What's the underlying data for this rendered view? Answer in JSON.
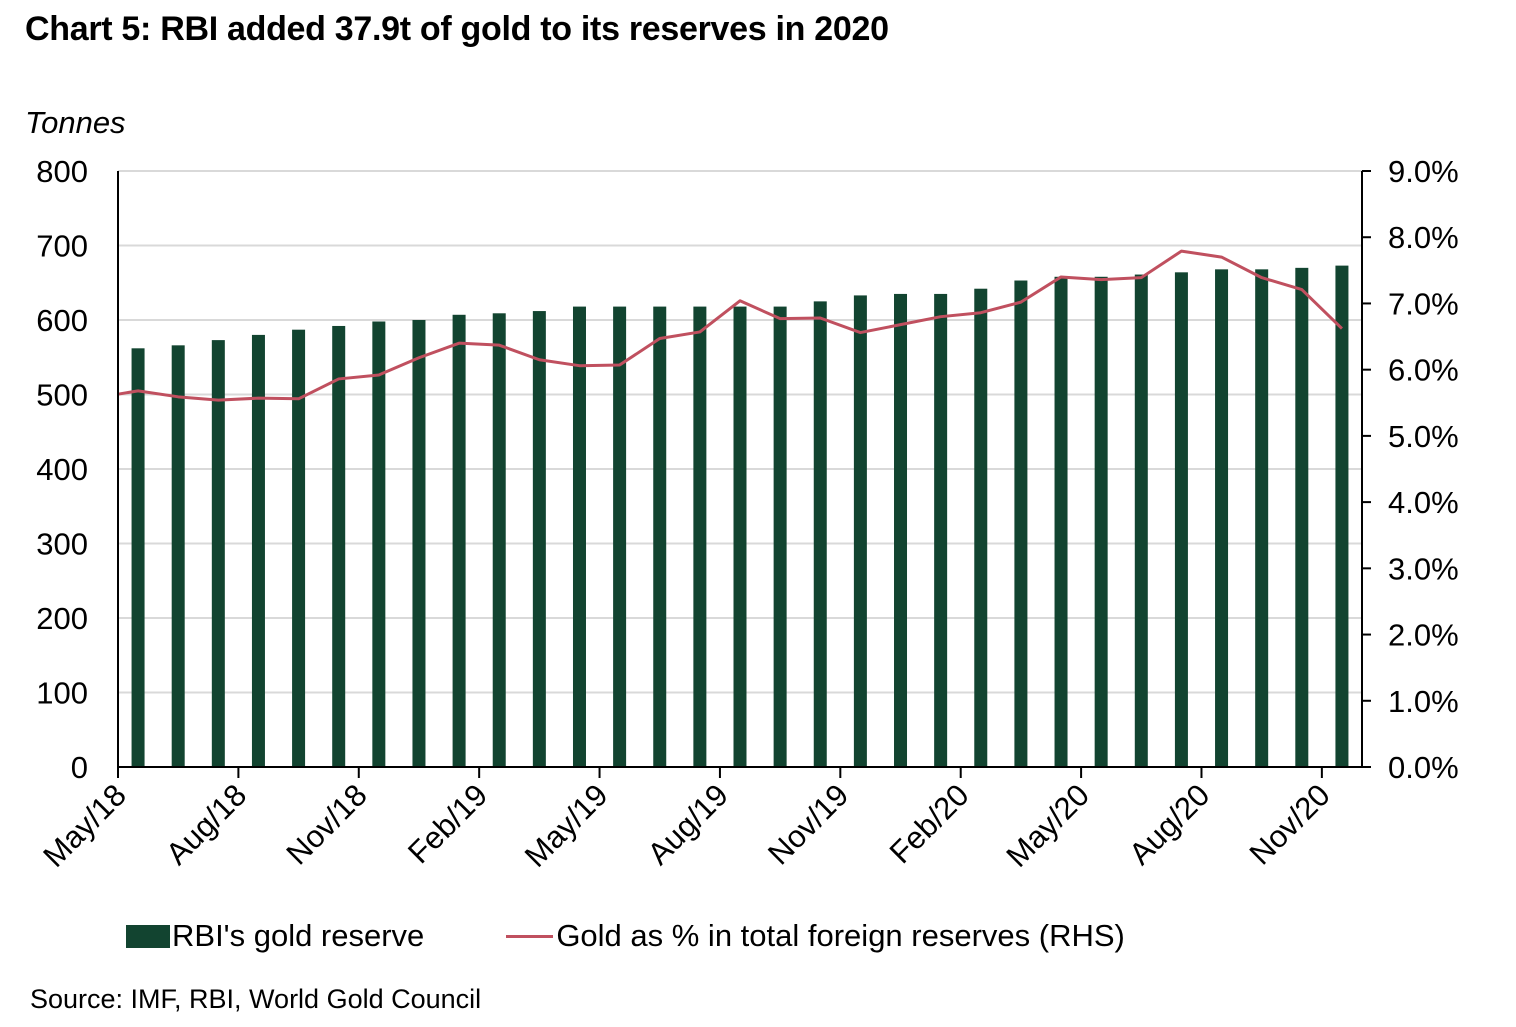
{
  "chart_data": {
    "type": "bar",
    "title": "Chart 5: RBI added 37.9t of gold to its reserves in 2020",
    "ylabel": "Tonnes",
    "y2label": "",
    "xlabel": "",
    "ylim": [
      0,
      800
    ],
    "y2lim": [
      0,
      9
    ],
    "yticks": [
      "0",
      "100",
      "200",
      "300",
      "400",
      "500",
      "600",
      "700",
      "800"
    ],
    "y2ticks": [
      "0.0%",
      "1.0%",
      "2.0%",
      "3.0%",
      "4.0%",
      "5.0%",
      "6.0%",
      "7.0%",
      "8.0%",
      "9.0%"
    ],
    "grid": true,
    "categories": [
      "May/18",
      "Jun/18",
      "Jul/18",
      "Aug/18",
      "Sep/18",
      "Oct/18",
      "Nov/18",
      "Dec/18",
      "Jan/19",
      "Feb/19",
      "Mar/19",
      "Apr/19",
      "May/19",
      "Jun/19",
      "Jul/19",
      "Aug/19",
      "Sep/19",
      "Oct/19",
      "Nov/19",
      "Dec/19",
      "Jan/20",
      "Feb/20",
      "Mar/20",
      "Apr/20",
      "May/20",
      "Jun/20",
      "Jul/20",
      "Aug/20",
      "Sep/20",
      "Oct/20",
      "Nov/20"
    ],
    "xtick_labels": [
      "May/18",
      "Aug/18",
      "Nov/18",
      "Feb/19",
      "May/19",
      "Aug/19",
      "Nov/19",
      "Feb/20",
      "May/20",
      "Aug/20",
      "Nov/20"
    ],
    "series": [
      {
        "name": "RBI's gold reserve",
        "type": "bar",
        "axis": "left",
        "color": "#124430",
        "values": [
          562,
          566,
          573,
          580,
          587,
          592,
          598,
          600,
          607,
          609,
          612,
          618,
          618,
          618,
          618,
          618,
          618,
          625,
          633,
          635,
          635,
          642,
          653,
          658,
          658,
          661,
          664,
          668,
          668,
          670,
          673
        ]
      },
      {
        "name": "Gold as % in total foreign reserves (RHS)",
        "type": "line",
        "axis": "right",
        "color": "#C0505F",
        "start_value": 5.63,
        "values": [
          5.68,
          5.59,
          5.54,
          5.57,
          5.56,
          5.86,
          5.92,
          6.18,
          6.4,
          6.37,
          6.15,
          6.06,
          6.07,
          6.47,
          6.57,
          7.04,
          6.77,
          6.78,
          6.56,
          6.68,
          6.8,
          6.86,
          7.02,
          7.4,
          7.36,
          7.39,
          7.79,
          7.7,
          7.39,
          7.21,
          6.62
        ]
      }
    ],
    "legend_position": "bottom",
    "source": "Source: IMF, RBI, World Gold Council"
  }
}
